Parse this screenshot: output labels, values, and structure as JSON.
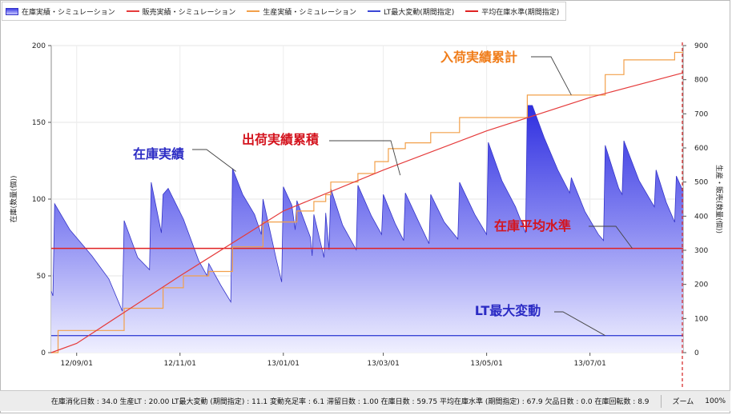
{
  "legend": [
    {
      "label": "在庫実績・シミュレーション",
      "color": "#3a3ae0",
      "kind": "area"
    },
    {
      "label": "販売実績・シミュレーション",
      "color": "#e53b3b",
      "kind": "line"
    },
    {
      "label": "生産実績・シミュレーション",
      "color": "#f2a04a",
      "kind": "line"
    },
    {
      "label": "LT最大変動(期間指定)",
      "color": "#3a46d6",
      "kind": "line"
    },
    {
      "label": "平均在庫水準(期間指定)",
      "color": "#e02222",
      "kind": "line"
    }
  ],
  "status": {
    "summary": "在庫消化日数 : 34.0 生産LT : 20.00 LT最大変動 (期間指定) : 11.1 変動充足率 : 6.1 滞留日数 : 1.00 在庫日数 : 59.75 平均在庫水準 (期間指定) : 67.9 欠品日数 : 0.0 在庫回転数 : 8.9",
    "zoom_label": "ズーム",
    "zoom_value": "100%"
  },
  "colors": {
    "inventory": "#3a3ae0",
    "sales": "#e53b3b",
    "production": "#f2a04a",
    "lt": "#3a46d6",
    "avg": "#e02222"
  },
  "chart_data": {
    "type": "area",
    "ylabel_left": "在庫(数量(個))",
    "ylabel_right": "生産・販売(数量(個))",
    "ylim_left": [
      0,
      200
    ],
    "ylim_right": [
      0,
      900
    ],
    "yticks_left": [
      0,
      50,
      100,
      150,
      200
    ],
    "yticks_right": [
      0,
      100,
      200,
      300,
      400,
      500,
      600,
      700,
      800,
      900
    ],
    "x_tick_labels": [
      "12/09/01",
      "12/11/01",
      "13/01/01",
      "13/03/01",
      "13/05/01",
      "13/07/01"
    ],
    "x_tick_dates": [
      "2012-09-01",
      "2012-11-01",
      "2013-01-01",
      "2013-03-01",
      "2013-05-01",
      "2013-07-01"
    ],
    "x_range": [
      "2012-08-17",
      "2013-08-25"
    ],
    "grid": true,
    "legend_position": "top-left",
    "series": [
      {
        "name": "在庫実績・シミュレーション",
        "axis": "left",
        "points": [
          [
            "2012-08-17",
            40
          ],
          [
            "2012-08-18",
            37
          ],
          [
            "2012-08-19",
            97
          ],
          [
            "2012-08-28",
            80
          ],
          [
            "2012-09-10",
            63
          ],
          [
            "2012-09-20",
            48
          ],
          [
            "2012-09-28",
            27
          ],
          [
            "2012-09-29",
            86
          ],
          [
            "2012-10-07",
            62
          ],
          [
            "2012-10-14",
            54
          ],
          [
            "2012-10-15",
            111
          ],
          [
            "2012-10-21",
            78
          ],
          [
            "2012-10-22",
            103
          ],
          [
            "2012-10-25",
            107
          ],
          [
            "2012-11-03",
            87
          ],
          [
            "2012-11-12",
            60
          ],
          [
            "2012-11-17",
            50
          ],
          [
            "2012-11-18",
            58
          ],
          [
            "2012-11-25",
            44
          ],
          [
            "2012-12-01",
            33
          ],
          [
            "2012-12-02",
            120
          ],
          [
            "2012-12-08",
            103
          ],
          [
            "2012-12-15",
            90
          ],
          [
            "2012-12-19",
            77
          ],
          [
            "2012-12-20",
            100
          ],
          [
            "2012-12-28",
            60
          ],
          [
            "2012-12-31",
            46
          ],
          [
            "2013-01-01",
            108
          ],
          [
            "2013-01-06",
            96
          ],
          [
            "2013-01-08",
            80
          ],
          [
            "2013-01-09",
            99
          ],
          [
            "2013-01-17",
            75
          ],
          [
            "2013-01-18",
            63
          ],
          [
            "2013-01-19",
            90
          ],
          [
            "2013-01-25",
            62
          ],
          [
            "2013-01-26",
            91
          ],
          [
            "2013-01-28",
            67
          ],
          [
            "2013-01-29",
            107
          ],
          [
            "2013-02-05",
            83
          ],
          [
            "2013-02-13",
            67
          ],
          [
            "2013-02-14",
            109
          ],
          [
            "2013-02-22",
            89
          ],
          [
            "2013-02-28",
            77
          ],
          [
            "2013-03-01",
            103
          ],
          [
            "2013-03-08",
            84
          ],
          [
            "2013-03-13",
            73
          ],
          [
            "2013-03-14",
            104
          ],
          [
            "2013-03-22",
            85
          ],
          [
            "2013-03-28",
            71
          ],
          [
            "2013-03-29",
            103
          ],
          [
            "2013-04-06",
            85
          ],
          [
            "2013-04-14",
            74
          ],
          [
            "2013-04-15",
            111
          ],
          [
            "2013-04-24",
            90
          ],
          [
            "2013-05-01",
            77
          ],
          [
            "2013-05-02",
            137
          ],
          [
            "2013-05-10",
            112
          ],
          [
            "2013-05-18",
            95
          ],
          [
            "2013-05-24",
            78
          ],
          [
            "2013-05-25",
            161
          ],
          [
            "2013-05-28",
            161
          ],
          [
            "2013-06-04",
            140
          ],
          [
            "2013-06-12",
            119
          ],
          [
            "2013-06-19",
            104
          ],
          [
            "2013-06-20",
            114
          ],
          [
            "2013-06-28",
            92
          ],
          [
            "2013-07-06",
            77
          ],
          [
            "2013-07-09",
            73
          ],
          [
            "2013-07-10",
            135
          ],
          [
            "2013-07-18",
            107
          ],
          [
            "2013-07-20",
            103
          ],
          [
            "2013-07-21",
            138
          ],
          [
            "2013-07-30",
            112
          ],
          [
            "2013-08-08",
            95
          ],
          [
            "2013-08-09",
            119
          ],
          [
            "2013-08-15",
            98
          ],
          [
            "2013-08-20",
            85
          ],
          [
            "2013-08-21",
            115
          ],
          [
            "2013-08-25",
            105
          ]
        ]
      },
      {
        "name": "販売実績・シミュレーション",
        "axis": "right",
        "points": [
          [
            "2012-08-17",
            0
          ],
          [
            "2012-09-01",
            27
          ],
          [
            "2012-11-01",
            225
          ],
          [
            "2013-01-01",
            415
          ],
          [
            "2013-03-01",
            535
          ],
          [
            "2013-05-01",
            650
          ],
          [
            "2013-07-01",
            748
          ],
          [
            "2013-08-25",
            820
          ]
        ]
      },
      {
        "name": "生産実績・シミュレーション",
        "axis": "right",
        "points": [
          [
            "2012-08-17",
            0
          ],
          [
            "2012-08-21",
            65
          ],
          [
            "2012-09-29",
            130
          ],
          [
            "2012-10-22",
            190
          ],
          [
            "2012-11-03",
            225
          ],
          [
            "2012-11-18",
            238
          ],
          [
            "2012-12-02",
            310
          ],
          [
            "2012-12-20",
            383
          ],
          [
            "2013-01-09",
            415
          ],
          [
            "2013-01-19",
            443
          ],
          [
            "2013-01-26",
            463
          ],
          [
            "2013-01-29",
            500
          ],
          [
            "2013-02-14",
            525
          ],
          [
            "2013-02-24",
            560
          ],
          [
            "2013-03-04",
            598
          ],
          [
            "2013-03-14",
            615
          ],
          [
            "2013-03-29",
            645
          ],
          [
            "2013-04-15",
            689
          ],
          [
            "2013-05-25",
            755
          ],
          [
            "2013-07-10",
            815
          ],
          [
            "2013-07-21",
            858
          ],
          [
            "2013-08-20",
            880
          ]
        ]
      },
      {
        "name": "LT最大変動(期間指定)",
        "axis": "left",
        "value": 11.1
      },
      {
        "name": "平均在庫水準(期間指定)",
        "axis": "left",
        "value": 67.9
      }
    ],
    "marker_date": "2013-08-25",
    "annotations": [
      {
        "text": "入荷実績累計",
        "color": "#f07d1a",
        "target": [
          "2013-06-20",
          755
        ]
      },
      {
        "text": "出荷実績累積",
        "color": "#d4141e",
        "target": [
          "2013-03-11",
          520
        ]
      },
      {
        "text": "在庫実績",
        "color": "#2b2bc4",
        "target": [
          "2012-12-04",
          118
        ]
      },
      {
        "text": "在庫平均水準",
        "color": "#d4141e",
        "target": [
          "2013-07-26",
          67.9
        ]
      },
      {
        "text": "LT最大変動",
        "color": "#2b2bc4",
        "target": [
          "2013-07-10",
          11.1
        ]
      }
    ]
  }
}
